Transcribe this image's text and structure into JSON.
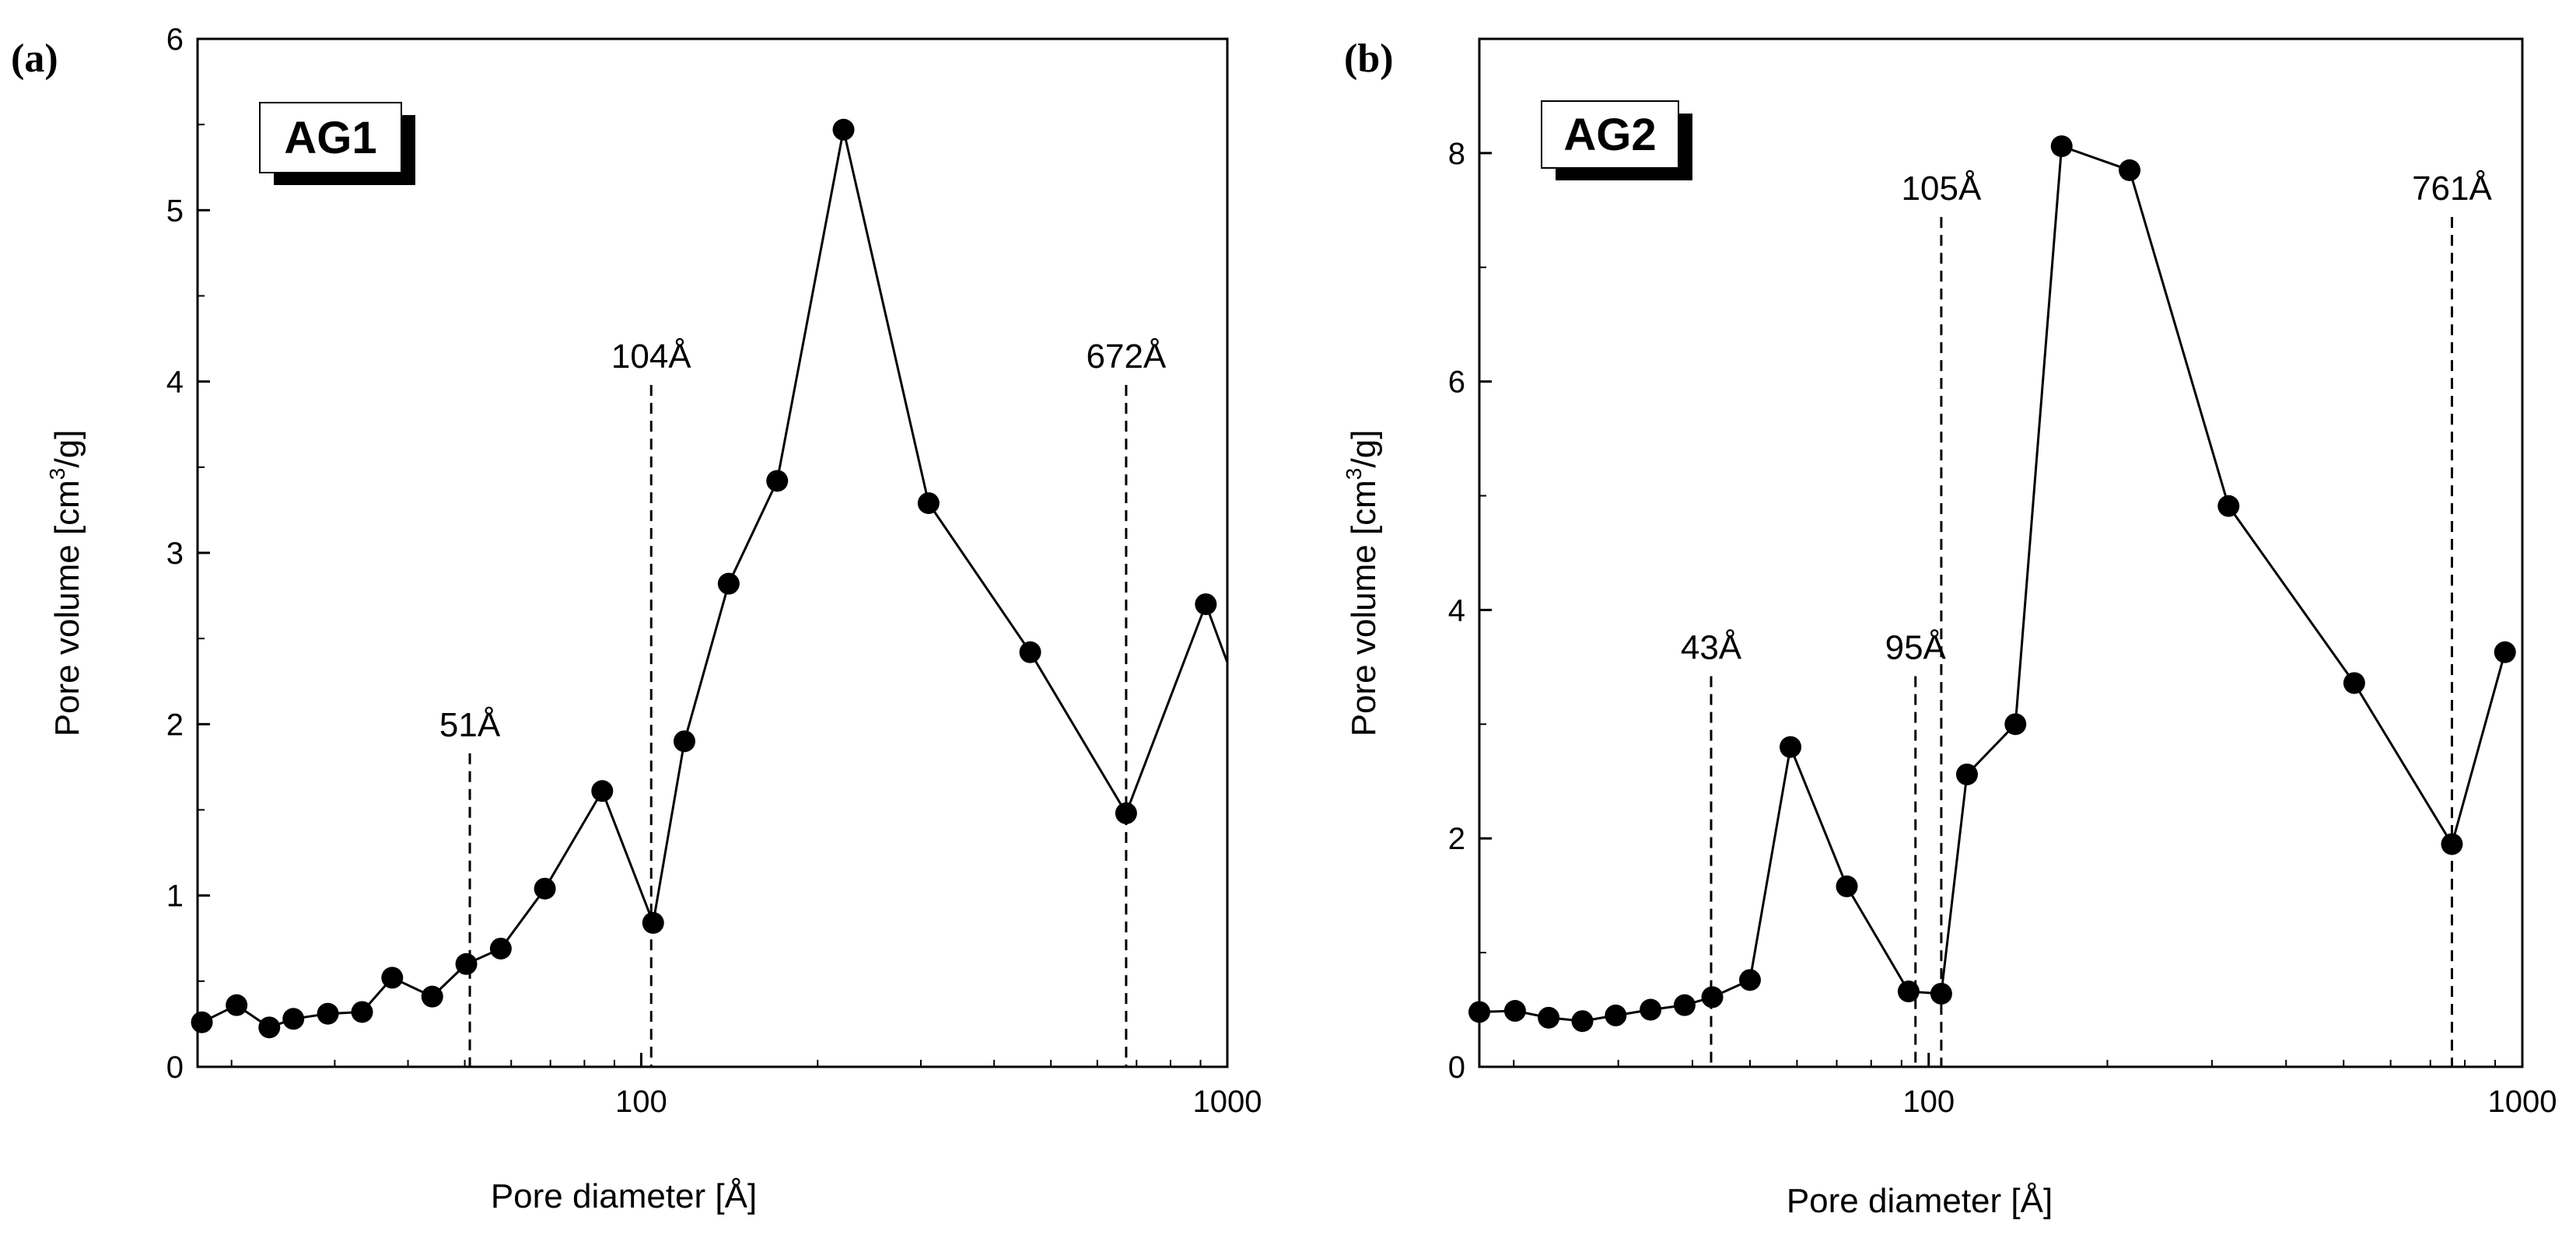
{
  "chart_data": [
    {
      "id": "a",
      "type": "line",
      "panel_label": "(a)",
      "tag": "AG1",
      "xlabel": "Pore diameter [Å]",
      "ylabel_main": "Pore volume [cm",
      "ylabel_sup": "3",
      "ylabel_tail": "/g]",
      "x_scale": "log",
      "xlim": [
        17.5,
        1000
      ],
      "ylim": [
        0,
        6
      ],
      "x_ticks": [
        {
          "value": 100,
          "label": "100"
        },
        {
          "value": 1000,
          "label": "1000"
        }
      ],
      "y_ticks": [
        {
          "value": 0,
          "label": "0"
        },
        {
          "value": 1,
          "label": "1"
        },
        {
          "value": 2,
          "label": "2"
        },
        {
          "value": 3,
          "label": "3"
        },
        {
          "value": 4,
          "label": "4"
        },
        {
          "value": 5,
          "label": "5"
        },
        {
          "value": 6,
          "label": "6"
        }
      ],
      "series": [
        {
          "name": "AG1",
          "x": [
            17.8,
            20.4,
            23.2,
            25.5,
            29.2,
            33.4,
            37.6,
            44.0,
            50.3,
            57.6,
            68.5,
            85.8,
            104.8,
            118.5,
            141.0,
            170.6,
            221.4,
            309.2,
            461.0,
            672.0,
            919.0
          ],
          "y": [
            0.26,
            0.36,
            0.23,
            0.28,
            0.31,
            0.32,
            0.52,
            0.41,
            0.6,
            0.69,
            1.04,
            1.61,
            0.84,
            1.9,
            2.82,
            3.42,
            5.47,
            3.29,
            2.42,
            1.48,
            2.7
          ],
          "line_end": {
            "x": 1000,
            "y": 2.36
          }
        }
      ],
      "annotations": [
        {
          "label": "51Å",
          "x": 51,
          "y_top": 1.83
        },
        {
          "label": "104Å",
          "x": 104,
          "y_top": 3.98
        },
        {
          "label": "672Å",
          "x": 672,
          "y_top": 3.98
        }
      ]
    },
    {
      "id": "b",
      "type": "line",
      "panel_label": "(b)",
      "tag": "AG2",
      "xlabel": "Pore diameter [Å]",
      "ylabel_main": "Pore volume [cm",
      "ylabel_sup": "3",
      "ylabel_tail": "/g]",
      "x_scale": "log",
      "xlim": [
        17.5,
        1000
      ],
      "ylim": [
        0,
        9
      ],
      "x_ticks": [
        {
          "value": 100,
          "label": "100"
        },
        {
          "value": 1000,
          "label": "1000"
        }
      ],
      "y_ticks": [
        {
          "value": 0,
          "label": "0"
        },
        {
          "value": 2,
          "label": "2"
        },
        {
          "value": 4,
          "label": "4"
        },
        {
          "value": 6,
          "label": "6"
        },
        {
          "value": 8,
          "label": "8"
        }
      ],
      "series": [
        {
          "name": "AG2",
          "x": [
            17.5,
            20.1,
            22.9,
            26.1,
            29.7,
            34.0,
            38.8,
            43.2,
            50.0,
            58.5,
            72.8,
            92.5,
            105.0,
            116.0,
            140.0,
            167.5,
            218.0,
            320.0,
            521.0,
            761.0,
            935.0
          ],
          "y": [
            0.48,
            0.49,
            0.43,
            0.4,
            0.45,
            0.5,
            0.54,
            0.61,
            0.76,
            2.8,
            1.58,
            0.66,
            0.64,
            2.56,
            3.0,
            8.06,
            7.85,
            4.91,
            3.36,
            1.95,
            3.63
          ]
        }
      ],
      "annotations": [
        {
          "label": "43Å",
          "x": 43,
          "y_top": 3.42
        },
        {
          "label": "95Å",
          "x": 95,
          "y_top": 3.42
        },
        {
          "label": "105Å",
          "x": 105,
          "y_top": 7.44
        },
        {
          "label": "761Å",
          "x": 761,
          "y_top": 7.44
        }
      ]
    }
  ],
  "colors": {
    "ink": "#000000",
    "background": "#ffffff"
  }
}
